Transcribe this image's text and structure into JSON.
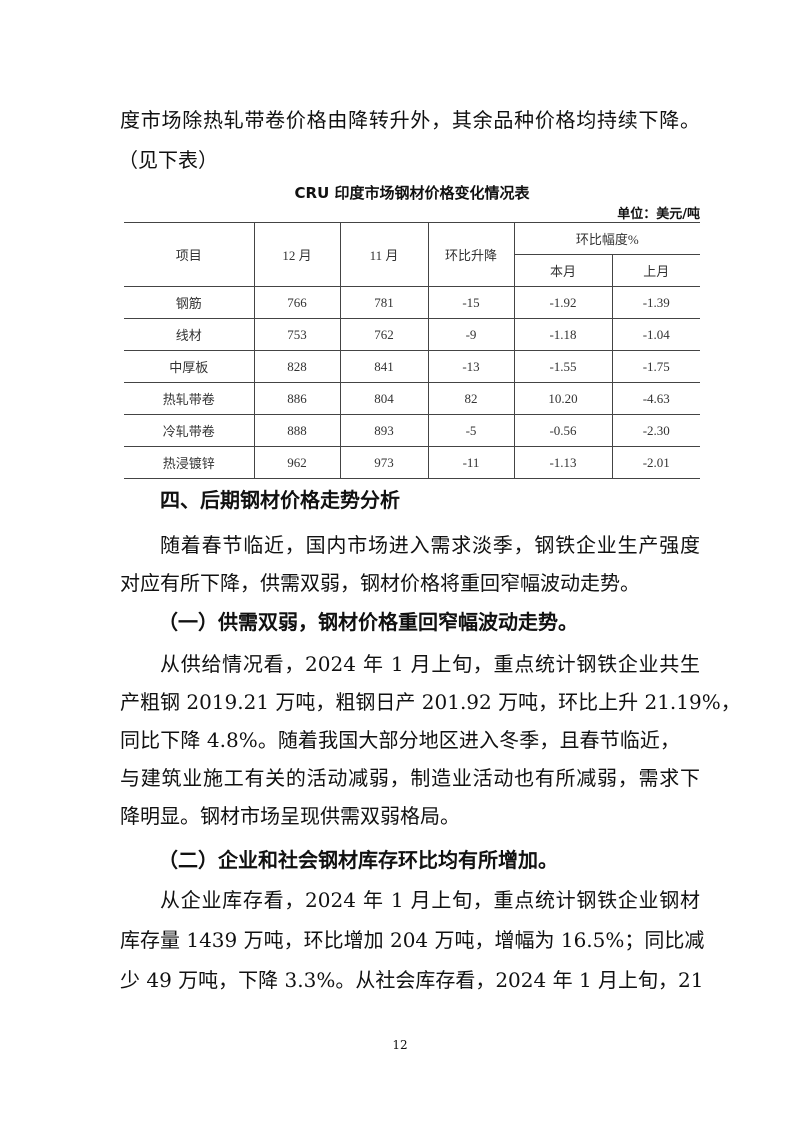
{
  "intro": {
    "line1": "度市场除热轧带卷价格由降转升外，其余品种价格均持续下降。",
    "line2": "（见下表）"
  },
  "table": {
    "title": "CRU 印度市场钢材价格变化情况表",
    "unit": "单位：美元/吨",
    "headers": {
      "item": "项目",
      "dec": "12 月",
      "nov": "11 月",
      "change": "环比升降",
      "pct": "环比幅度%",
      "this_month": "本月",
      "last_month": "上月"
    },
    "rows": [
      {
        "item": "钢筋",
        "dec": "766",
        "nov": "781",
        "change": "-15",
        "this_month": "-1.92",
        "last_month": "-1.39"
      },
      {
        "item": "线材",
        "dec": "753",
        "nov": "762",
        "change": "-9",
        "this_month": "-1.18",
        "last_month": "-1.04"
      },
      {
        "item": "中厚板",
        "dec": "828",
        "nov": "841",
        "change": "-13",
        "this_month": "-1.55",
        "last_month": "-1.75"
      },
      {
        "item": "热轧带卷",
        "dec": "886",
        "nov": "804",
        "change": "82",
        "this_month": "10.20",
        "last_month": "-4.63"
      },
      {
        "item": "冷轧带卷",
        "dec": "888",
        "nov": "893",
        "change": "-5",
        "this_month": "-0.56",
        "last_month": "-2.30"
      },
      {
        "item": "热浸镀锌",
        "dec": "962",
        "nov": "973",
        "change": "-11",
        "this_month": "-1.13",
        "last_month": "-2.01"
      }
    ]
  },
  "section4": {
    "heading": "四、后期钢材价格走势分析",
    "p1": [
      "随着春节临近，国内市场进入需求淡季，钢铁企业生产强度",
      "对应有所下降，供需双弱，钢材价格将重回窄幅波动走势。"
    ],
    "sub1": "（一）供需双弱，钢材价格重回窄幅波动走势。",
    "p2": [
      "从供给情况看，2024 年 1 月上旬，重点统计钢铁企业共生",
      "产粗钢 2019.21 万吨，粗钢日产 201.92 万吨，环比上升 21.19%，",
      "同比下降 4.8%。随着我国大部分地区进入冬季，且春节临近，",
      "与建筑业施工有关的活动减弱，制造业活动也有所减弱，需求下",
      "降明显。钢材市场呈现供需双弱格局。"
    ],
    "sub2": "（二）企业和社会钢材库存环比均有所增加。",
    "p3": [
      "从企业库存看，2024 年 1 月上旬，重点统计钢铁企业钢材",
      "库存量 1439 万吨，环比增加 204 万吨，增幅为 16.5%；同比减",
      "少 49 万吨，下降 3.3%。从社会库存看，2024 年 1 月上旬，21"
    ]
  },
  "page_number": "12"
}
